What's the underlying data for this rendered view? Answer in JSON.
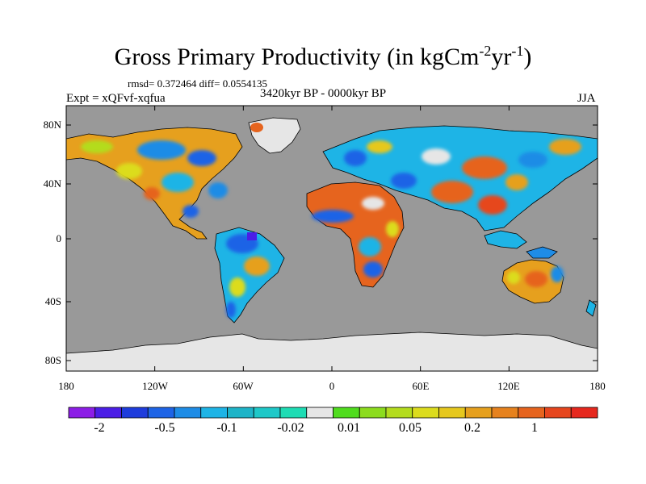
{
  "title": {
    "main": "Gross Primary Productivity (in kgCm",
    "sup1": "-2",
    "mid": "yr",
    "sup2": "-1",
    "end": ")"
  },
  "stats": "rmsd= 0.372464 diff= 0.0554135",
  "experiment": "Expt = xQFvf-xqfua",
  "period": "3420kyr BP - 0000kyr BP",
  "season": "JJA",
  "map": {
    "ocean_color": "#999999",
    "x_ticks": [
      "180",
      "120W",
      "60W",
      "0",
      "60E",
      "120E",
      "180"
    ],
    "y_ticks": [
      "80N",
      "40N",
      "0",
      "40S",
      "80S"
    ]
  },
  "colorbar": {
    "colors": [
      "#8c1ee6",
      "#4b1ee6",
      "#1e3cdc",
      "#1e64e6",
      "#1e8ce6",
      "#1eb4e6",
      "#1eb4c8",
      "#1ec8c8",
      "#1edcb4",
      "#e6e6e6",
      "#50dc1e",
      "#8cdc1e",
      "#b4dc1e",
      "#dcdc1e",
      "#e6c81e",
      "#e6a01e",
      "#e6821e",
      "#e6641e",
      "#e6461e",
      "#e6281e"
    ],
    "labels": [
      "-2",
      "-0.5",
      "-0.1",
      "-0.02",
      "0.01",
      "0.05",
      "0.2",
      "1"
    ]
  }
}
